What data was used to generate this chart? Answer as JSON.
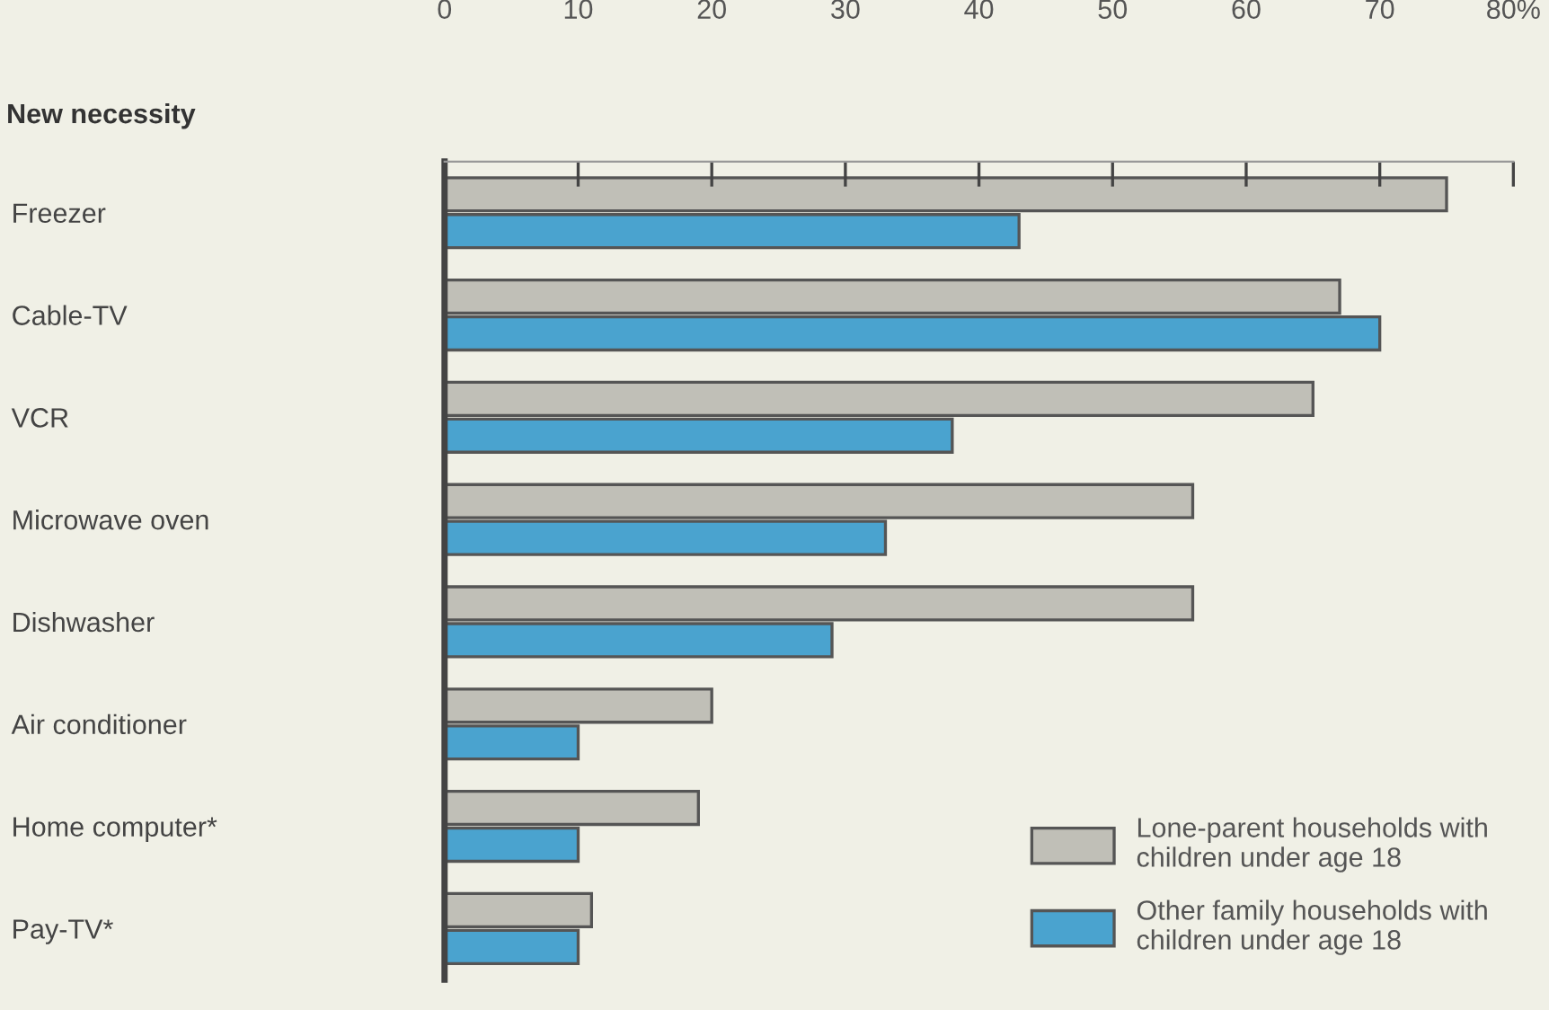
{
  "chart_data": {
    "type": "bar",
    "orientation": "horizontal",
    "ylabel": "New necessity",
    "categories": [
      "Freezer",
      "Cable-TV",
      "VCR",
      "Microwave oven",
      "Dishwasher",
      "Air conditioner",
      "Home computer*",
      "Pay-TV*"
    ],
    "series": [
      {
        "name": "Lone-parent households with\nchildren under age 18",
        "color": "#c0bfb7",
        "values": [
          75,
          67,
          65,
          56,
          56,
          20,
          19,
          11
        ]
      },
      {
        "name": "Other family households with\nchildren under age 18",
        "color": "#4aa3cf",
        "values": [
          43,
          70,
          38,
          33,
          29,
          10,
          10,
          10
        ]
      }
    ],
    "xlim": [
      0,
      80
    ],
    "xticks": [
      0,
      10,
      20,
      30,
      40,
      50,
      60,
      70,
      {
        "value": 80,
        "label": "80%"
      }
    ],
    "grid": false,
    "legend": "bottom right"
  }
}
